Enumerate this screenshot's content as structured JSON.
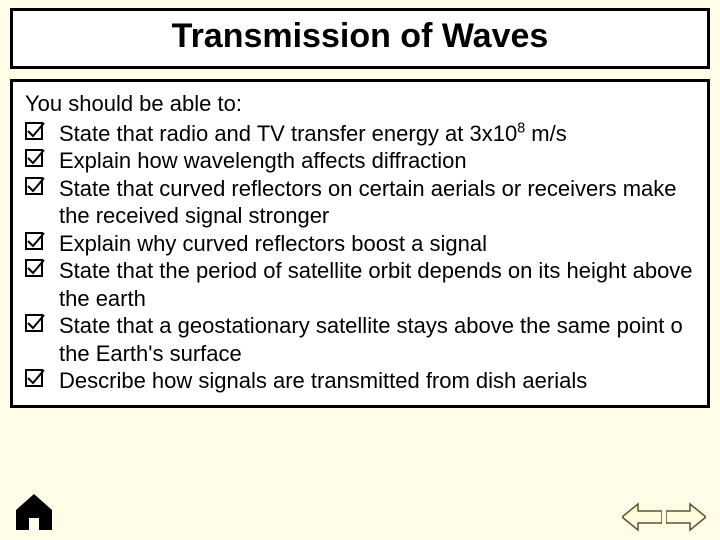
{
  "title": "Transmission of Waves",
  "intro": "You should be able to:",
  "items": [
    {
      "pre": "State that radio and TV transfer energy at 3x10",
      "sup": "8",
      "post": " m/s"
    },
    {
      "pre": "Explain how wavelength affects diffraction",
      "sup": "",
      "post": ""
    },
    {
      "pre": "State that curved reflectors on certain aerials or receivers make the received signal stronger",
      "sup": "",
      "post": ""
    },
    {
      "pre": "Explain why curved reflectors boost a signal",
      "sup": "",
      "post": ""
    },
    {
      "pre": "State that the period of satellite orbit depends on its height above the earth",
      "sup": "",
      "post": ""
    },
    {
      "pre": "State that a geostationary satellite stays above the same point o the Earth's surface",
      "sup": "",
      "post": ""
    },
    {
      "pre": "Describe how signals are transmitted from dish aerials",
      "sup": "",
      "post": ""
    }
  ],
  "colors": {
    "background": "#fffde8",
    "box_border": "#000000",
    "box_fill": "#ffffff",
    "text": "#000000",
    "arrow_fill": "#fffbdb",
    "arrow_stroke": "#5a5630"
  }
}
